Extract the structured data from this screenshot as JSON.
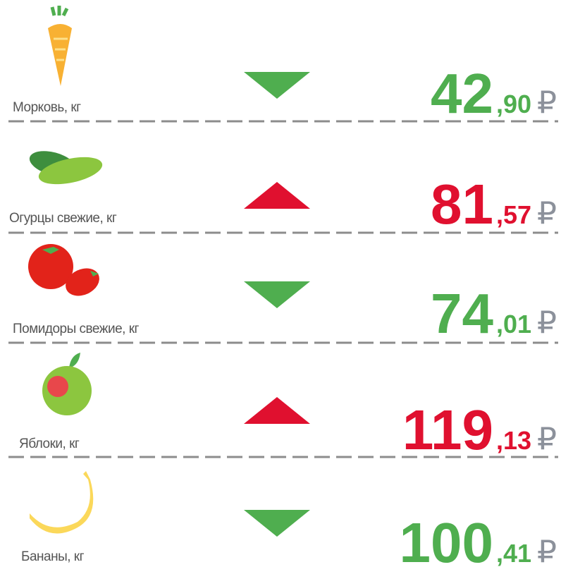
{
  "currency": "₽",
  "items": [
    {
      "label": "Морковь, кг",
      "price_int": "42",
      "price_frac": ",90",
      "trend": "down"
    },
    {
      "label": "Огурцы свежие, кг",
      "price_int": "81",
      "price_frac": ",57",
      "trend": "up"
    },
    {
      "label": "Помидоры свежие, кг",
      "price_int": "74",
      "price_frac": ",01",
      "trend": "down"
    },
    {
      "label": "Яблоки, кг",
      "price_int": "119",
      "price_frac": ",13",
      "trend": "up"
    },
    {
      "label": "Бананы, кг",
      "price_int": "100",
      "price_frac": ",41",
      "trend": "down"
    }
  ],
  "colors": {
    "down": "#4fae4f",
    "up": "#e0102f"
  }
}
